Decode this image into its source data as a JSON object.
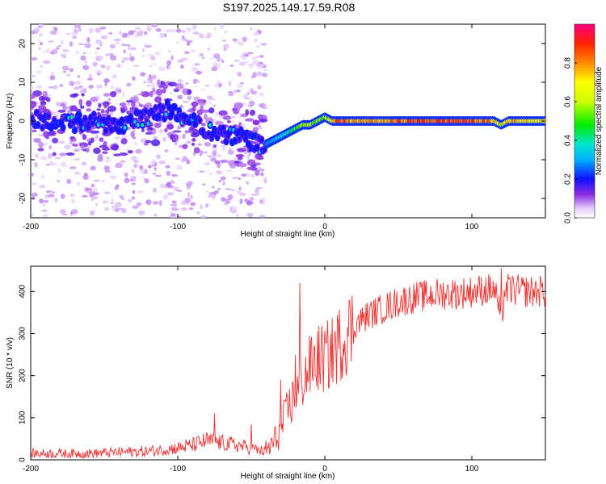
{
  "title": "S197.2025.149.17.59.R08",
  "chart_data": [
    {
      "type": "heatmap",
      "xlabel": "Height of straight line (km)",
      "ylabel": "Frequency (Hz)",
      "xlim": [
        -200,
        150
      ],
      "ylim": [
        -25,
        25
      ],
      "x_ticks": [
        -200,
        -100,
        0,
        100
      ],
      "y_ticks": [
        -20,
        -10,
        0,
        10,
        20
      ],
      "colorbar": {
        "label": "Normalized spectral amplitude",
        "range": [
          0.0,
          1.0
        ],
        "ticks": [
          "0.0",
          "0.2",
          "0.4",
          "0.6",
          "0.8"
        ],
        "tick_values": [
          0.0,
          0.2,
          0.4,
          0.6,
          0.8
        ]
      },
      "ridge_line": {
        "x": [
          -200,
          -180,
          -160,
          -140,
          -120,
          -105,
          -95,
          -85,
          -75,
          -65,
          -55,
          -45,
          -40,
          -35,
          -30,
          -25,
          -20,
          -15,
          -10,
          -5,
          0,
          5,
          10,
          20,
          40,
          60,
          80,
          100,
          115,
          120,
          125,
          150
        ],
        "freq": [
          1,
          -1,
          0,
          -1,
          1,
          3,
          1,
          -1,
          -3,
          -4,
          -4,
          -6,
          -6,
          -5,
          -4,
          -3,
          -2,
          -1,
          -1,
          0,
          1,
          0,
          0,
          0,
          0,
          0,
          0,
          0,
          0,
          -1,
          0,
          0
        ],
        "amplitude": [
          0.3,
          0.3,
          0.3,
          0.3,
          0.3,
          0.3,
          0.3,
          0.3,
          0.3,
          0.3,
          0.3,
          0.2,
          0.3,
          0.3,
          0.4,
          0.4,
          0.5,
          0.6,
          0.6,
          0.6,
          0.6,
          0.7,
          0.9,
          0.8,
          0.8,
          0.9,
          0.9,
          0.9,
          0.8,
          0.6,
          0.8,
          0.7
        ]
      }
    },
    {
      "type": "line",
      "xlabel": "Height of straight line (km)",
      "ylabel": "SNR (10 * v/v)",
      "xlim": [
        -200,
        150
      ],
      "ylim": [
        0,
        460
      ],
      "x_ticks": [
        -200,
        -100,
        0,
        100
      ],
      "y_ticks": [
        0,
        100,
        200,
        300,
        400
      ],
      "color": "#ee3333",
      "series": [
        {
          "x": [
            -200,
            -180,
            -160,
            -140,
            -120,
            -100,
            -90,
            -80,
            -70,
            -60,
            -50,
            -45,
            -40,
            -35,
            -30,
            -25,
            -22,
            -20,
            -18,
            -15,
            -10,
            -5,
            0,
            5,
            10,
            15,
            20,
            30,
            40,
            50,
            60,
            70,
            80,
            90,
            100,
            110,
            115,
            118,
            120,
            122,
            125,
            135,
            150
          ],
          "y": [
            15,
            15,
            15,
            18,
            20,
            28,
            35,
            45,
            40,
            35,
            28,
            22,
            20,
            40,
            70,
            120,
            140,
            170,
            160,
            190,
            220,
            240,
            240,
            255,
            275,
            300,
            320,
            345,
            360,
            375,
            385,
            390,
            395,
            395,
            400,
            405,
            405,
            370,
            310,
            400,
            405,
            400,
            400
          ]
        }
      ],
      "spikes": [
        {
          "x": -17,
          "y": 420
        },
        {
          "x": -75,
          "y": 110
        },
        {
          "x": -50,
          "y": 85
        },
        {
          "x": -30,
          "y": 190
        },
        {
          "x": -20,
          "y": 250
        },
        {
          "x": 120,
          "y": 455
        }
      ]
    }
  ]
}
